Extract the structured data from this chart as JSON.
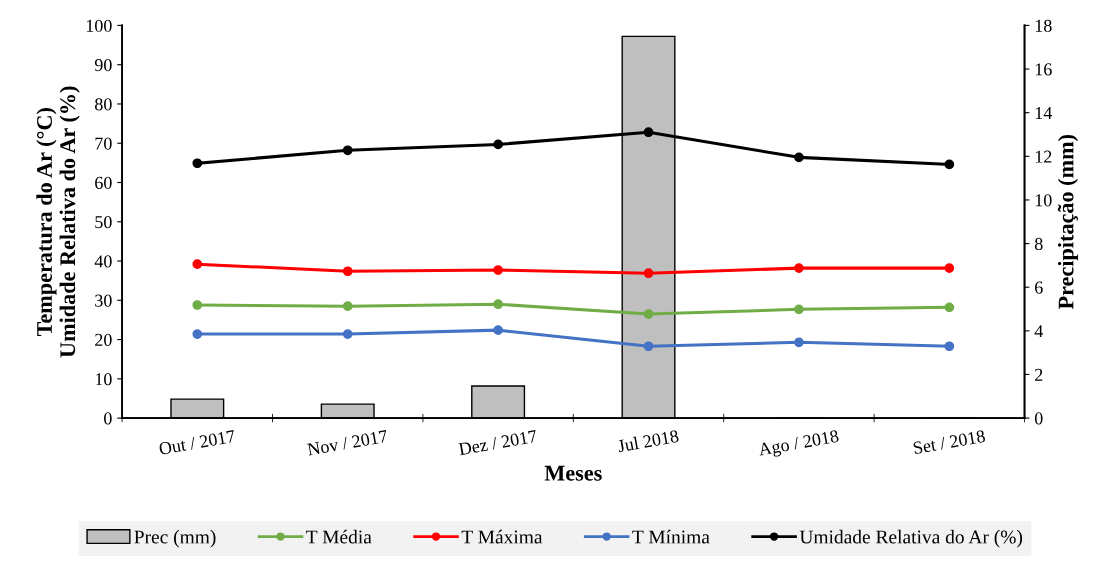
{
  "chart_data": {
    "type": "line",
    "xlabel": "Meses",
    "ylabel": "Temperatura do Ar (°C)\nUmidade Relativa do Ar (%)",
    "y2label": "Precipitação (mm)",
    "categories": [
      "Out / 2017",
      "Nov / 2017",
      "Dez / 2017",
      "Jul 2018",
      "Ago / 2018",
      "Set / 2018"
    ],
    "series": [
      {
        "name": "Prec (mm)",
        "type": "bar",
        "axis": "y2",
        "color": "#bfbfbf",
        "values": [
          0.87,
          0.64,
          1.47,
          17.5,
          0,
          0
        ]
      },
      {
        "name": "T Média",
        "color": "#70ad47",
        "values": [
          28.8,
          28.5,
          29.0,
          26.5,
          27.7,
          28.2
        ]
      },
      {
        "name": "T Máxima",
        "color": "#ff0000",
        "values": [
          39.2,
          37.4,
          37.7,
          36.9,
          38.2,
          38.2
        ]
      },
      {
        "name": "T Mínima",
        "color": "#4472c4",
        "values": [
          21.4,
          21.4,
          22.4,
          18.3,
          19.3,
          18.3
        ]
      },
      {
        "name": "Umidade Relativa do Ar (%)",
        "color": "#000000",
        "values": [
          64.9,
          68.2,
          69.7,
          72.8,
          66.4,
          64.6
        ]
      }
    ],
    "ylim": [
      0,
      100
    ],
    "yticks": [
      0,
      10,
      20,
      30,
      40,
      50,
      60,
      70,
      80,
      90,
      100
    ],
    "y2lim": [
      0,
      18
    ],
    "y2ticks": [
      0,
      2,
      4,
      6,
      8,
      10,
      12,
      14,
      16,
      18
    ],
    "marker": "circle",
    "legend": "bottom",
    "grid": false
  }
}
